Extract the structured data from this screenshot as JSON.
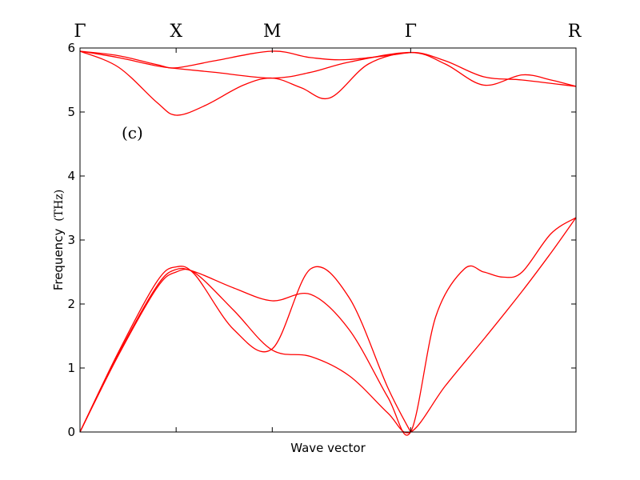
{
  "chart_data": {
    "type": "line",
    "panel_label": "(c)",
    "xlabel": "Wave vector",
    "ylabel": "Frequency",
    "ylabel_unit": "(THz)",
    "ylim": [
      0,
      6
    ],
    "xlim": [
      0,
      5.16
    ],
    "yticks": [
      "0",
      "1",
      "2",
      "3",
      "4",
      "5",
      "6"
    ],
    "high_symmetry_points": [
      {
        "label": "Γ",
        "x": 0
      },
      {
        "label": "X",
        "x": 1
      },
      {
        "label": "M",
        "x": 2
      },
      {
        "label": "Γ",
        "x": 3.44
      },
      {
        "label": "R",
        "x": 5.16
      }
    ],
    "series": [
      {
        "x": [
          0,
          0.4,
          0.8,
          1.0,
          1.2,
          1.6,
          2.0,
          2.4,
          2.8,
          3.2,
          3.44,
          3.8,
          4.2,
          4.6,
          4.9,
          5.16
        ],
        "y": [
          0,
          1.2,
          2.25,
          2.5,
          2.48,
          1.9,
          1.28,
          1.18,
          0.88,
          0.3,
          0,
          0.72,
          1.45,
          2.2,
          2.8,
          3.35
        ]
      },
      {
        "x": [
          0,
          0.4,
          0.8,
          1.0,
          1.2,
          1.6,
          2.0,
          2.4,
          2.8,
          3.2,
          3.44,
          3.7,
          4.0,
          4.2,
          4.4,
          4.6,
          4.9,
          5.16
        ],
        "y": [
          0,
          1.22,
          2.28,
          2.54,
          2.5,
          2.25,
          2.05,
          2.15,
          1.6,
          0.55,
          0,
          1.8,
          2.55,
          2.5,
          2.42,
          2.5,
          3.1,
          3.35
        ]
      },
      {
        "x": [
          0,
          0.4,
          0.8,
          1.0,
          1.2,
          1.6,
          2.0,
          2.4,
          2.8,
          3.2,
          3.44
        ],
        "y": [
          0,
          1.25,
          2.35,
          2.58,
          2.45,
          1.6,
          1.3,
          2.55,
          2.1,
          0.7,
          0
        ]
      },
      {
        "x": [
          0,
          0.4,
          0.8,
          1.0,
          1.3,
          1.7,
          2.0,
          2.3,
          2.6,
          3.0,
          3.44,
          3.8,
          4.2,
          4.6,
          5.16
        ],
        "y": [
          5.95,
          5.7,
          5.15,
          4.95,
          5.1,
          5.42,
          5.53,
          5.38,
          5.22,
          5.75,
          5.93,
          5.8,
          5.55,
          5.5,
          5.4
        ]
      },
      {
        "x": [
          0,
          0.4,
          0.8,
          1.0,
          1.4,
          2.0,
          2.4,
          2.8,
          3.44,
          3.8,
          4.2,
          4.6,
          4.9,
          5.16
        ],
        "y": [
          5.95,
          5.85,
          5.72,
          5.68,
          5.62,
          5.53,
          5.62,
          5.78,
          5.93,
          5.75,
          5.42,
          5.58,
          5.5,
          5.4
        ]
      },
      {
        "x": [
          0,
          0.4,
          0.8,
          1.0,
          1.4,
          2.0,
          2.4,
          2.8,
          3.44
        ],
        "y": [
          5.95,
          5.88,
          5.74,
          5.69,
          5.8,
          5.95,
          5.85,
          5.82,
          5.93
        ]
      }
    ],
    "color": "#ff0000",
    "grid": false
  }
}
